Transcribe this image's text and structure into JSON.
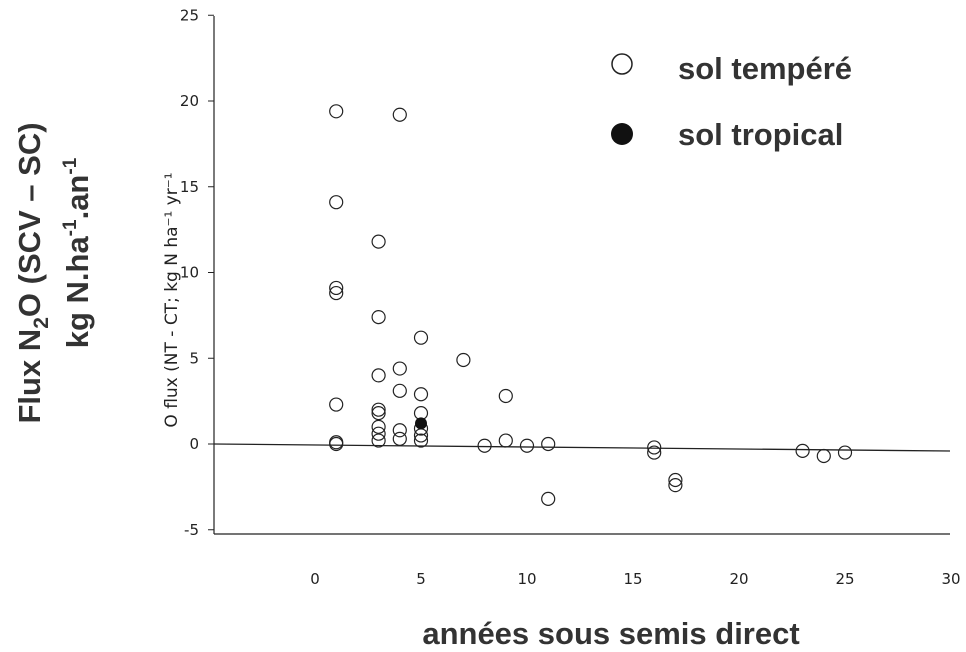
{
  "chart_data": {
    "type": "scatter",
    "xlabel": "années sous semis direct",
    "ylabel_inner": "O flux (NT - CT; kg N ha⁻¹ yr⁻¹",
    "ylabel_outer": {
      "line1": {
        "a": "Flux N",
        "sub": "2",
        "b": "O (SCV – SC)"
      },
      "line2": {
        "a": "kg N.ha",
        "sup1": "-1",
        "b": ".an",
        "sup2": "-1"
      }
    },
    "xlim": [
      -5,
      30
    ],
    "ylim": [
      -5,
      25
    ],
    "xticks": [
      0,
      5,
      10,
      15,
      20,
      25,
      30
    ],
    "yticks": [
      -5,
      0,
      5,
      10,
      15,
      20,
      25
    ],
    "grid": false,
    "legend_position": "top-right",
    "series": [
      {
        "name": "sol tempéré",
        "marker": "open-circle",
        "color": "#222222",
        "points": [
          [
            1,
            19.4
          ],
          [
            1,
            14.1
          ],
          [
            1,
            9.1
          ],
          [
            1,
            8.8
          ],
          [
            1,
            2.3
          ],
          [
            1,
            0.1
          ],
          [
            1,
            0.0
          ],
          [
            3,
            11.8
          ],
          [
            3,
            7.4
          ],
          [
            3,
            4.0
          ],
          [
            3,
            2.0
          ],
          [
            3,
            1.8
          ],
          [
            3,
            1.0
          ],
          [
            3,
            0.6
          ],
          [
            3,
            0.2
          ],
          [
            4,
            19.2
          ],
          [
            4,
            4.4
          ],
          [
            4,
            3.1
          ],
          [
            4,
            0.8
          ],
          [
            4,
            0.3
          ],
          [
            5,
            6.2
          ],
          [
            5,
            2.9
          ],
          [
            5,
            1.8
          ],
          [
            5,
            0.9
          ],
          [
            5,
            0.5
          ],
          [
            5,
            0.2
          ],
          [
            7,
            4.9
          ],
          [
            8,
            -0.1
          ],
          [
            9,
            2.8
          ],
          [
            9,
            0.2
          ],
          [
            10,
            -0.1
          ],
          [
            11,
            0.0
          ],
          [
            11,
            -3.2
          ],
          [
            16,
            -0.2
          ],
          [
            16,
            -0.5
          ],
          [
            17,
            -2.1
          ],
          [
            17,
            -2.4
          ],
          [
            23,
            -0.4
          ],
          [
            24,
            -0.7
          ],
          [
            25,
            -0.5
          ]
        ]
      },
      {
        "name": "sol tropical",
        "marker": "filled-circle",
        "color": "#111111",
        "points": [
          [
            5,
            1.2
          ]
        ]
      }
    ]
  }
}
